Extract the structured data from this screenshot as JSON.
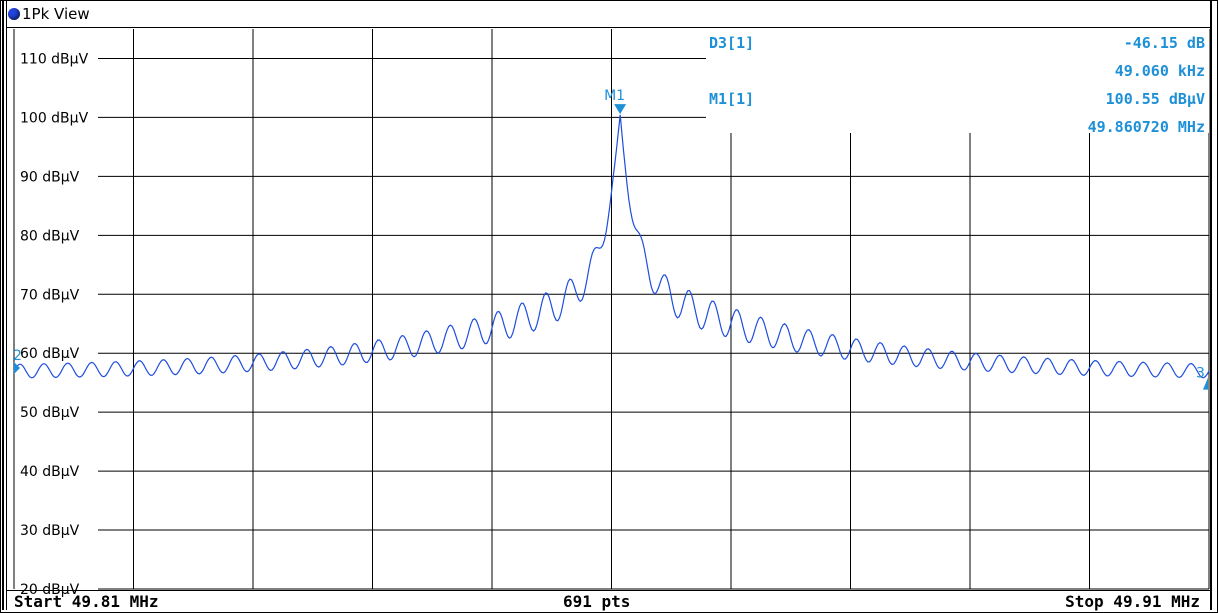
{
  "window": {
    "title": "1Pk View"
  },
  "footer": {
    "start": "Start 49.81 MHz",
    "points": "691 pts",
    "stop": "Stop 49.91 MHz"
  },
  "markers": {
    "d3": {
      "label": "D3[1]",
      "level": "-46.15 dB",
      "freq": "49.060 kHz"
    },
    "m1": {
      "label": "M1[1]",
      "level": "100.55 dBµV",
      "freq": "49.860720 MHz",
      "tag": "M1"
    }
  },
  "colors": {
    "trace": "#1e4de0",
    "marker": "#1e90d8",
    "grid": "#000000"
  },
  "chart_data": {
    "type": "line",
    "xlim": [
      49.81,
      49.91
    ],
    "ylim": [
      20,
      115
    ],
    "yticks": [
      {
        "value": 110,
        "label": "110 dBµV"
      },
      {
        "value": 100,
        "label": "100 dBµV"
      },
      {
        "value": 90,
        "label": "90 dBµV"
      },
      {
        "value": 80,
        "label": "80 dBµV"
      },
      {
        "value": 70,
        "label": "70 dBµV"
      },
      {
        "value": 60,
        "label": "60 dBµV"
      },
      {
        "value": 50,
        "label": "50 dBµV"
      },
      {
        "value": 40,
        "label": "40 dBµV"
      },
      {
        "value": 30,
        "label": "30 dBµV"
      },
      {
        "value": 20,
        "label": "20 dBµV"
      }
    ],
    "grid": true,
    "points": 691,
    "peak": {
      "x": 49.86072,
      "y": 100.55
    },
    "trace_shape": {
      "base_level_edge": 56.5,
      "ripple_amplitude": 1.8,
      "ripple_count": 50
    },
    "side_markers": {
      "left": "2",
      "right": "3"
    }
  }
}
